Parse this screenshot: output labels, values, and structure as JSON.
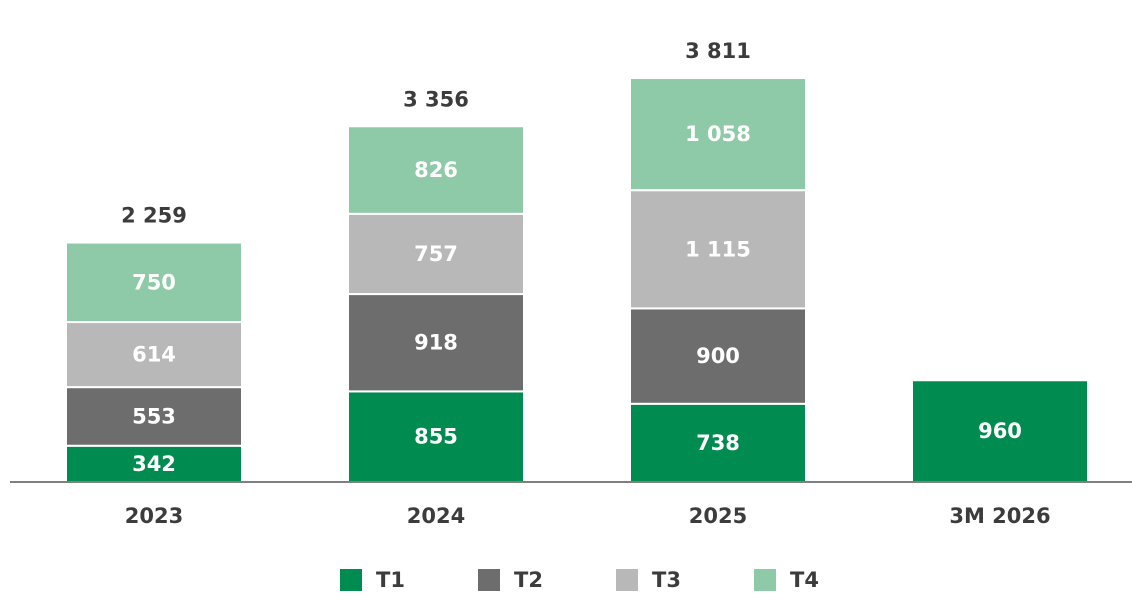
{
  "chart_data": {
    "type": "stacked_bar",
    "categories": [
      "2023",
      "2024",
      "2025",
      "3M 2026"
    ],
    "series": [
      {
        "name": "T1",
        "color": "#008c50",
        "values": [
          342,
          855,
          738,
          960
        ]
      },
      {
        "name": "T2",
        "color": "#6d6d6d",
        "values": [
          553,
          918,
          900,
          null
        ]
      },
      {
        "name": "T3",
        "color": "#b8b8b8",
        "values": [
          614,
          757,
          1115,
          null
        ],
        "value_labels": [
          "614",
          "757",
          "1 115",
          null
        ]
      },
      {
        "name": "T4",
        "color": "#8fcaa8",
        "values": [
          750,
          826,
          1058,
          null
        ],
        "value_labels": [
          "750",
          "826",
          "1 058",
          null
        ]
      }
    ],
    "totals": [
      2259,
      3356,
      3811,
      null
    ],
    "total_labels": [
      "2 259",
      "3 356",
      "3 811",
      null
    ],
    "ylim": [
      0,
      4500
    ]
  }
}
